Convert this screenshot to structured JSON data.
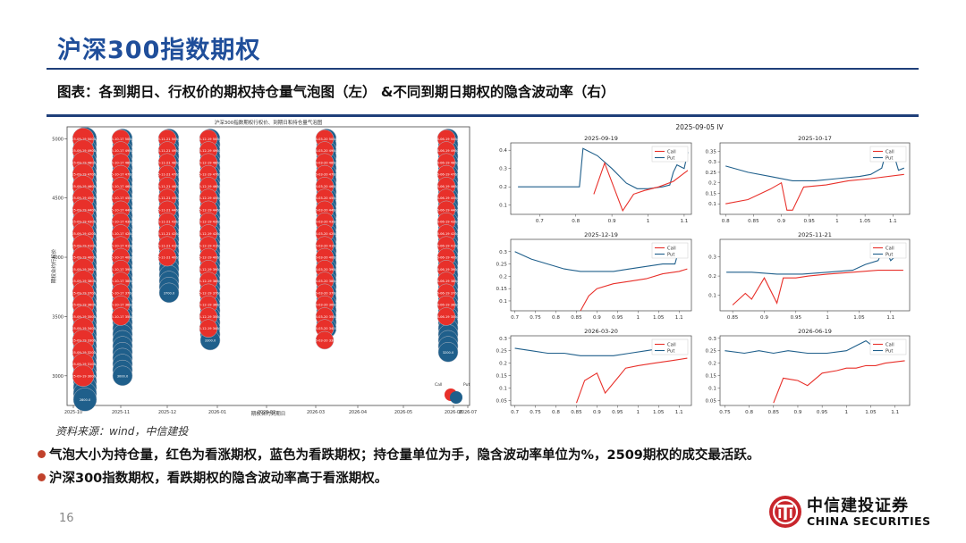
{
  "header": {
    "title": "沪深300指数期权",
    "subtitle": "图表：各到期日、行权价的期权持仓量气泡图（左）  &不同到期日期权的隐含波动率（右）"
  },
  "source": "资料来源：wind，中信建投",
  "bullets": [
    "气泡大小为持仓量，红色为看涨期权，蓝色为看跌期权；持仓量单位为手，隐含波动率单位为%，2509期权的成交最活跃。",
    "沪深300指数期权，看跌期权的隐含波动率高于看涨期权。"
  ],
  "page_number": "16",
  "logo": {
    "cn": "中信建投证券",
    "en": "CHINA SECURITIES"
  },
  "colors": {
    "call": "#e8302a",
    "put": "#1f5f8b",
    "accent": "#1f4e9a",
    "logo_red": "#c8262c"
  },
  "chart_data": [
    {
      "type": "scatter",
      "title": "沪深300指数期权行权价、到期日和持仓量气泡图",
      "xlabel": "期权合约到期日",
      "ylabel": "期权合约行权价",
      "x_ticks": [
        "2025-10",
        "2025-11",
        "2025-12",
        "2026-01",
        "2026-02",
        "2026-03",
        "2026-04",
        "2026-05",
        "2026-06",
        "2026-07"
      ],
      "y_ticks": [
        3000,
        3500,
        4000,
        4500,
        5000
      ],
      "ylim": [
        2750,
        5100
      ],
      "expiries": [
        "2025-09-19",
        "2025-10-17",
        "2025-11-21",
        "2025-12-19",
        "2026-03-20",
        "2026-06-19"
      ],
      "call_ranges": [
        [
          3000,
          5000
        ],
        [
          3500,
          5000
        ],
        [
          4000,
          5000
        ],
        [
          3400,
          5000
        ],
        [
          3300,
          5000
        ],
        [
          3500,
          5000
        ]
      ],
      "put_ranges": [
        [
          2800,
          5000
        ],
        [
          3000,
          5000
        ],
        [
          3700,
          5000
        ],
        [
          3300,
          5000
        ],
        [
          3400,
          5000
        ],
        [
          3200,
          5000
        ]
      ],
      "legend": [
        "Call",
        "Put"
      ]
    },
    {
      "type": "line",
      "title": "2025-09-05 IV",
      "legend": [
        "Call",
        "Put"
      ],
      "subplots": [
        {
          "title": "2025-09-19",
          "x_ticks": [
            0.7,
            0.8,
            0.9,
            1.0,
            1.1
          ],
          "y_ticks": [
            0.1,
            0.2,
            0.3,
            0.4
          ],
          "xlim": [
            0.62,
            1.12
          ],
          "ylim": [
            0.05,
            0.44
          ],
          "put": {
            "x": [
              0.64,
              0.7,
              0.76,
              0.8,
              0.81,
              0.82,
              0.86,
              0.9,
              0.94,
              0.97,
              1.0,
              1.04,
              1.06,
              1.07,
              1.08,
              1.1,
              1.11
            ],
            "y": [
              0.2,
              0.2,
              0.2,
              0.2,
              0.2,
              0.41,
              0.37,
              0.3,
              0.22,
              0.19,
              0.19,
              0.2,
              0.21,
              0.28,
              0.32,
              0.3,
              0.39
            ]
          },
          "call": {
            "x": [
              0.85,
              0.88,
              0.93,
              0.96,
              0.99,
              1.03,
              1.07,
              1.11
            ],
            "y": [
              0.16,
              0.33,
              0.07,
              0.16,
              0.18,
              0.2,
              0.23,
              0.29
            ]
          }
        },
        {
          "title": "2025-10-17",
          "x_ticks": [
            0.8,
            0.85,
            0.9,
            0.95,
            1.0,
            1.05,
            1.1
          ],
          "y_ticks": [
            0.1,
            0.15,
            0.2,
            0.25,
            0.3,
            0.35
          ],
          "xlim": [
            0.79,
            1.13
          ],
          "ylim": [
            0.05,
            0.39
          ],
          "put": {
            "x": [
              0.8,
              0.84,
              0.88,
              0.92,
              0.96,
              1.0,
              1.04,
              1.06,
              1.08,
              1.09,
              1.1,
              1.11,
              1.12
            ],
            "y": [
              0.28,
              0.25,
              0.23,
              0.21,
              0.21,
              0.22,
              0.23,
              0.24,
              0.27,
              0.37,
              0.35,
              0.26,
              0.27
            ]
          },
          "call": {
            "x": [
              0.8,
              0.84,
              0.88,
              0.9,
              0.91,
              0.92,
              0.94,
              0.98,
              1.02,
              1.06,
              1.12
            ],
            "y": [
              0.1,
              0.12,
              0.17,
              0.2,
              0.07,
              0.07,
              0.18,
              0.19,
              0.21,
              0.22,
              0.24
            ]
          }
        },
        {
          "title": "2025-12-19",
          "x_ticks": [
            0.7,
            0.75,
            0.8,
            0.85,
            0.9,
            0.95,
            1.0,
            1.05,
            1.1
          ],
          "y_ticks": [
            0.1,
            0.15,
            0.2,
            0.25,
            0.3
          ],
          "xlim": [
            0.69,
            1.13
          ],
          "ylim": [
            0.06,
            0.35
          ],
          "put": {
            "x": [
              0.7,
              0.74,
              0.78,
              0.82,
              0.86,
              0.9,
              0.94,
              0.98,
              1.02,
              1.06,
              1.09,
              1.1
            ],
            "y": [
              0.3,
              0.27,
              0.25,
              0.23,
              0.22,
              0.22,
              0.22,
              0.23,
              0.24,
              0.25,
              0.25,
              0.31
            ]
          },
          "call": {
            "x": [
              0.86,
              0.88,
              0.9,
              0.94,
              0.98,
              1.02,
              1.06,
              1.1,
              1.12
            ],
            "y": [
              0.06,
              0.12,
              0.15,
              0.17,
              0.18,
              0.19,
              0.21,
              0.22,
              0.23
            ]
          }
        },
        {
          "title": "2025-11-21",
          "x_ticks": [
            0.85,
            0.9,
            0.95,
            1.0,
            1.05,
            1.1
          ],
          "y_ticks": [
            0.1,
            0.2,
            0.3
          ],
          "xlim": [
            0.83,
            1.13
          ],
          "ylim": [
            0.02,
            0.39
          ],
          "put": {
            "x": [
              0.84,
              0.88,
              0.92,
              0.96,
              1.0,
              1.04,
              1.06,
              1.08,
              1.09,
              1.1,
              1.12
            ],
            "y": [
              0.22,
              0.22,
              0.21,
              0.21,
              0.22,
              0.23,
              0.26,
              0.28,
              0.35,
              0.28,
              0.34
            ]
          },
          "call": {
            "x": [
              0.85,
              0.87,
              0.88,
              0.9,
              0.92,
              0.93,
              0.95,
              0.97,
              1.0,
              1.04,
              1.08,
              1.12
            ],
            "y": [
              0.05,
              0.11,
              0.08,
              0.19,
              0.06,
              0.19,
              0.19,
              0.2,
              0.21,
              0.22,
              0.23,
              0.23
            ]
          }
        },
        {
          "title": "2026-03-20",
          "x_ticks": [
            0.7,
            0.75,
            0.8,
            0.85,
            0.9,
            0.95,
            1.0,
            1.05,
            1.1
          ],
          "y_ticks": [
            0.05,
            0.1,
            0.15,
            0.2,
            0.25,
            0.3
          ],
          "xlim": [
            0.69,
            1.13
          ],
          "ylim": [
            0.03,
            0.31
          ],
          "put": {
            "x": [
              0.7,
              0.74,
              0.78,
              0.82,
              0.86,
              0.9,
              0.94,
              0.98,
              1.02,
              1.06,
              1.08,
              1.1
            ],
            "y": [
              0.26,
              0.25,
              0.24,
              0.24,
              0.23,
              0.23,
              0.23,
              0.24,
              0.25,
              0.26,
              0.28,
              0.29
            ]
          },
          "call": {
            "x": [
              0.85,
              0.87,
              0.9,
              0.92,
              0.95,
              0.97,
              1.0,
              1.04,
              1.08,
              1.12
            ],
            "y": [
              0.04,
              0.13,
              0.16,
              0.08,
              0.14,
              0.18,
              0.19,
              0.2,
              0.21,
              0.22
            ]
          }
        },
        {
          "title": "2026-06-19",
          "x_ticks": [
            0.75,
            0.8,
            0.85,
            0.9,
            0.95,
            1.0,
            1.05,
            1.1
          ],
          "y_ticks": [
            0.05,
            0.1,
            0.15,
            0.2,
            0.25,
            0.3
          ],
          "xlim": [
            0.74,
            1.13
          ],
          "ylim": [
            0.03,
            0.31
          ],
          "put": {
            "x": [
              0.75,
              0.79,
              0.82,
              0.85,
              0.88,
              0.92,
              0.96,
              1.0,
              1.02,
              1.04,
              1.06,
              1.08,
              1.1
            ],
            "y": [
              0.25,
              0.24,
              0.25,
              0.24,
              0.25,
              0.24,
              0.24,
              0.25,
              0.27,
              0.29,
              0.26,
              0.25,
              0.26
            ]
          },
          "call": {
            "x": [
              0.85,
              0.87,
              0.9,
              0.92,
              0.95,
              0.98,
              1.0,
              1.02,
              1.04,
              1.06,
              1.08,
              1.12
            ],
            "y": [
              0.04,
              0.14,
              0.13,
              0.11,
              0.16,
              0.17,
              0.18,
              0.18,
              0.19,
              0.19,
              0.2,
              0.21
            ]
          }
        }
      ]
    }
  ]
}
